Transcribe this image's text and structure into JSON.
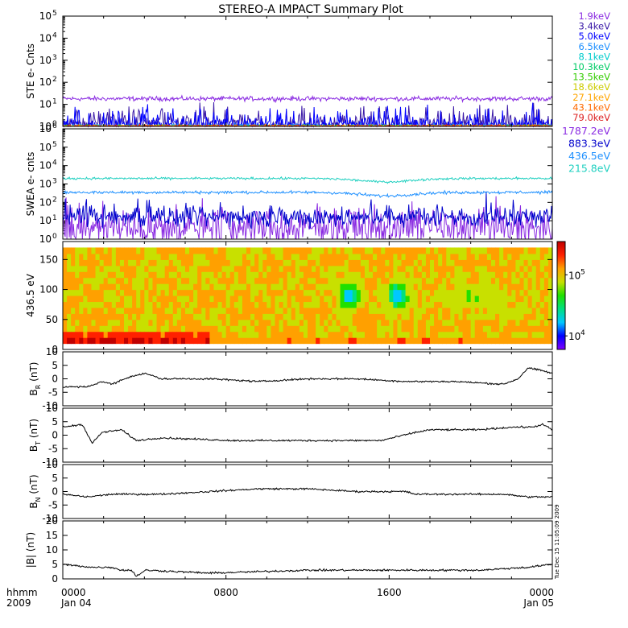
{
  "title": "STEREO-A IMPACT Summary Plot",
  "colors": {
    "frame": "#000000",
    "background": "#ffffff"
  },
  "footer": {
    "axis_label_1": "hhmm",
    "axis_label_2": "2009",
    "timestamp_note": "Tue Dec 15 11:05:09 2009"
  },
  "chart_data": [
    {
      "id": "ste",
      "type": "line",
      "ylabel": "STE e- Cnts",
      "yscale": "log",
      "ylim": [
        1,
        100000
      ],
      "yticks": [
        {
          "value": 1,
          "base": "10",
          "exp": "0"
        },
        {
          "value": 10,
          "base": "10",
          "exp": "1"
        },
        {
          "value": 100,
          "base": "10",
          "exp": "2"
        },
        {
          "value": 1000,
          "base": "10",
          "exp": "3"
        },
        {
          "value": 10000,
          "base": "10",
          "exp": "4"
        },
        {
          "value": 100000,
          "base": "10",
          "exp": "5"
        }
      ],
      "x": [
        "0000",
        "0800",
        "1600",
        "0000"
      ],
      "series_style": "noisy",
      "series": [
        {
          "name": "1.9keV",
          "color": "#8a2be2",
          "level": 18,
          "noise": 0.05
        },
        {
          "name": "3.4keV",
          "color": "#3b1aa8",
          "level": 1.3,
          "noise": 0.18
        },
        {
          "name": "5.0keV",
          "color": "#0000ff",
          "level": 1.15,
          "noise": 0.15
        },
        {
          "name": "6.5keV",
          "color": "#1e90ff",
          "level": 1.05,
          "noise": 0.05
        },
        {
          "name": "8.1keV",
          "color": "#00cccc",
          "level": 1.02,
          "noise": 0.03
        },
        {
          "name": "10.3keV",
          "color": "#00cc66",
          "level": 1.02,
          "noise": 0.03
        },
        {
          "name": "13.5keV",
          "color": "#33cc00",
          "level": 1.02,
          "noise": 0.03
        },
        {
          "name": "18.6keV",
          "color": "#cccc00",
          "level": 1.02,
          "noise": 0.03
        },
        {
          "name": "27.1keV",
          "color": "#ffa500",
          "level": 1.02,
          "noise": 0.03
        },
        {
          "name": "43.1keV",
          "color": "#ff6a00",
          "level": 1.02,
          "noise": 0.03
        },
        {
          "name": "79.0keV",
          "color": "#dd2222",
          "level": 1.02,
          "noise": 0.03
        }
      ]
    },
    {
      "id": "swea",
      "type": "line",
      "ylabel": "SWEA e- cnts",
      "yscale": "log",
      "ylim": [
        1,
        1000000
      ],
      "yticks": [
        {
          "value": 1,
          "base": "10",
          "exp": "0"
        },
        {
          "value": 10,
          "base": "10",
          "exp": "1"
        },
        {
          "value": 100,
          "base": "10",
          "exp": "2"
        },
        {
          "value": 1000,
          "base": "10",
          "exp": "3"
        },
        {
          "value": 10000,
          "base": "10",
          "exp": "4"
        },
        {
          "value": 100000,
          "base": "10",
          "exp": "5"
        },
        {
          "value": 1000000,
          "base": "10",
          "exp": "6"
        }
      ],
      "series_style": "noisy",
      "series": [
        {
          "name": "1787.2eV",
          "color": "#8a2be2",
          "level": 4,
          "noise": 0.5
        },
        {
          "name": "883.3eV",
          "color": "#0000cc",
          "level": 15,
          "noise": 0.25
        },
        {
          "name": "436.5eV",
          "color": "#1e90ff",
          "level": 350,
          "noise": 0.04,
          "dip": 0.35
        },
        {
          "name": "215.8eV",
          "color": "#20d0c0",
          "level": 2000,
          "noise": 0.03,
          "dip": 0.35
        }
      ]
    },
    {
      "id": "spectrogram",
      "type": "heatmap",
      "ylabel": "436.5 eV",
      "ylim": [
        0,
        180
      ],
      "yticks": [
        0,
        50,
        100,
        150
      ],
      "colorbar": {
        "ticks": [
          {
            "value": 10000,
            "base": "10",
            "exp": "4"
          },
          {
            "value": 100000,
            "base": "10",
            "exp": "5"
          }
        ],
        "range": [
          6000,
          350000
        ],
        "colors": [
          "#8000ff",
          "#0000ff",
          "#00c8ff",
          "#00e080",
          "#20e000",
          "#c8e000",
          "#ffa000",
          "#ff2000",
          "#c00000"
        ]
      }
    },
    {
      "id": "br",
      "type": "line",
      "ylabel_main": "B",
      "ylabel_sub": "R",
      "ylabel_unit": " (nT)",
      "ylim": [
        -10,
        10
      ],
      "yticks": [
        -10,
        -5,
        0,
        5,
        10
      ],
      "series": [
        {
          "color": "#000000"
        }
      ],
      "keypoints": [
        [
          0,
          -3
        ],
        [
          0.05,
          -3
        ],
        [
          0.08,
          -1
        ],
        [
          0.1,
          -2
        ],
        [
          0.14,
          1
        ],
        [
          0.17,
          2
        ],
        [
          0.2,
          0
        ],
        [
          0.3,
          0
        ],
        [
          0.4,
          -1
        ],
        [
          0.5,
          0
        ],
        [
          0.6,
          0
        ],
        [
          0.7,
          -1
        ],
        [
          0.8,
          -1
        ],
        [
          0.9,
          -2
        ],
        [
          0.93,
          0
        ],
        [
          0.95,
          4
        ],
        [
          0.98,
          3
        ],
        [
          1,
          2
        ]
      ]
    },
    {
      "id": "bt",
      "type": "line",
      "ylabel_main": "B",
      "ylabel_sub": "T",
      "ylabel_unit": " (nT)",
      "ylim": [
        -10,
        10
      ],
      "yticks": [
        -10,
        -5,
        0,
        5,
        10
      ],
      "series": [
        {
          "color": "#000000"
        }
      ],
      "keypoints": [
        [
          0,
          3
        ],
        [
          0.04,
          4
        ],
        [
          0.06,
          -3
        ],
        [
          0.08,
          1
        ],
        [
          0.12,
          2
        ],
        [
          0.15,
          -2
        ],
        [
          0.2,
          -1
        ],
        [
          0.35,
          -2
        ],
        [
          0.5,
          -2
        ],
        [
          0.65,
          -2
        ],
        [
          0.72,
          1
        ],
        [
          0.75,
          2
        ],
        [
          0.85,
          2
        ],
        [
          0.92,
          3
        ],
        [
          0.96,
          3
        ],
        [
          0.98,
          4
        ],
        [
          1,
          2
        ]
      ]
    },
    {
      "id": "bn",
      "type": "line",
      "ylabel_main": "B",
      "ylabel_sub": "N",
      "ylabel_unit": " (nT)",
      "ylim": [
        -10,
        10
      ],
      "yticks": [
        -10,
        -5,
        0,
        5,
        10
      ],
      "series": [
        {
          "color": "#000000"
        }
      ],
      "keypoints": [
        [
          0,
          -1
        ],
        [
          0.05,
          -2
        ],
        [
          0.1,
          -1
        ],
        [
          0.2,
          -1
        ],
        [
          0.3,
          0
        ],
        [
          0.4,
          1
        ],
        [
          0.5,
          1
        ],
        [
          0.6,
          0
        ],
        [
          0.7,
          0
        ],
        [
          0.72,
          -1
        ],
        [
          0.8,
          -1
        ],
        [
          0.9,
          -1
        ],
        [
          0.95,
          -2
        ],
        [
          1,
          -2
        ]
      ]
    },
    {
      "id": "bmag",
      "type": "line",
      "ylabel": "|B| (nT)",
      "ylim": [
        0,
        20
      ],
      "yticks": [
        0,
        5,
        10,
        15,
        20
      ],
      "series": [
        {
          "color": "#000000"
        }
      ],
      "keypoints": [
        [
          0,
          5
        ],
        [
          0.06,
          4
        ],
        [
          0.1,
          4
        ],
        [
          0.12,
          3
        ],
        [
          0.14,
          3
        ],
        [
          0.15,
          1
        ],
        [
          0.17,
          3
        ],
        [
          0.3,
          2
        ],
        [
          0.5,
          3
        ],
        [
          0.7,
          3
        ],
        [
          0.85,
          3
        ],
        [
          0.95,
          4
        ],
        [
          1,
          5
        ]
      ]
    }
  ],
  "x_axis": {
    "ticks": [
      {
        "time": "0000",
        "date": "Jan 04"
      },
      {
        "time": "0800",
        "date": ""
      },
      {
        "time": "1600",
        "date": ""
      },
      {
        "time": "0000",
        "date": "Jan 05"
      }
    ]
  }
}
